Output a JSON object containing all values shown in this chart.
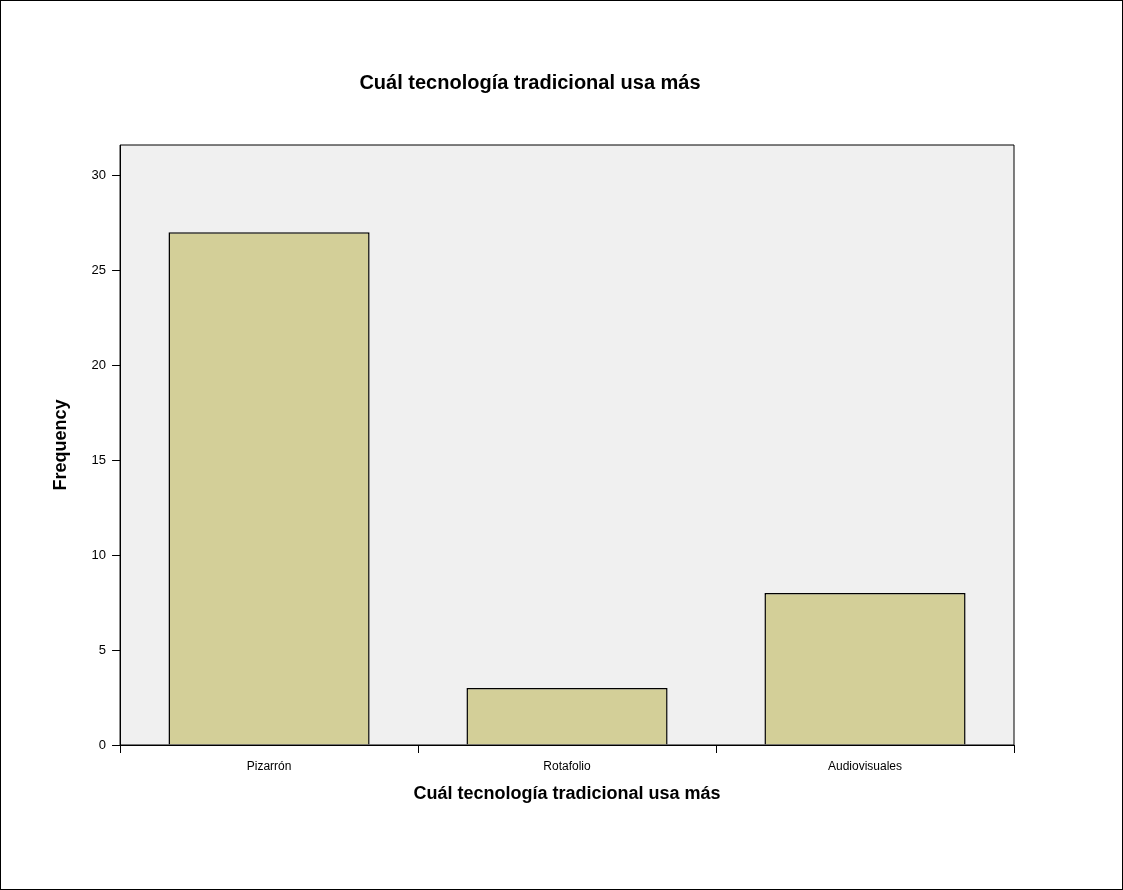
{
  "chart_data": {
    "type": "bar",
    "title": "Cuál tecnología tradicional usa más",
    "xlabel": "Cuál tecnología tradicional usa más",
    "ylabel": "Frequency",
    "categories": [
      "Pizarrón",
      "Rotafolio",
      "Audiovisuales"
    ],
    "values": [
      27,
      3,
      8
    ],
    "color": "#d3cf98",
    "ylim": [
      0,
      31.6
    ],
    "yticks": [
      0,
      5,
      10,
      15,
      20,
      25,
      30
    ],
    "grid": false
  }
}
